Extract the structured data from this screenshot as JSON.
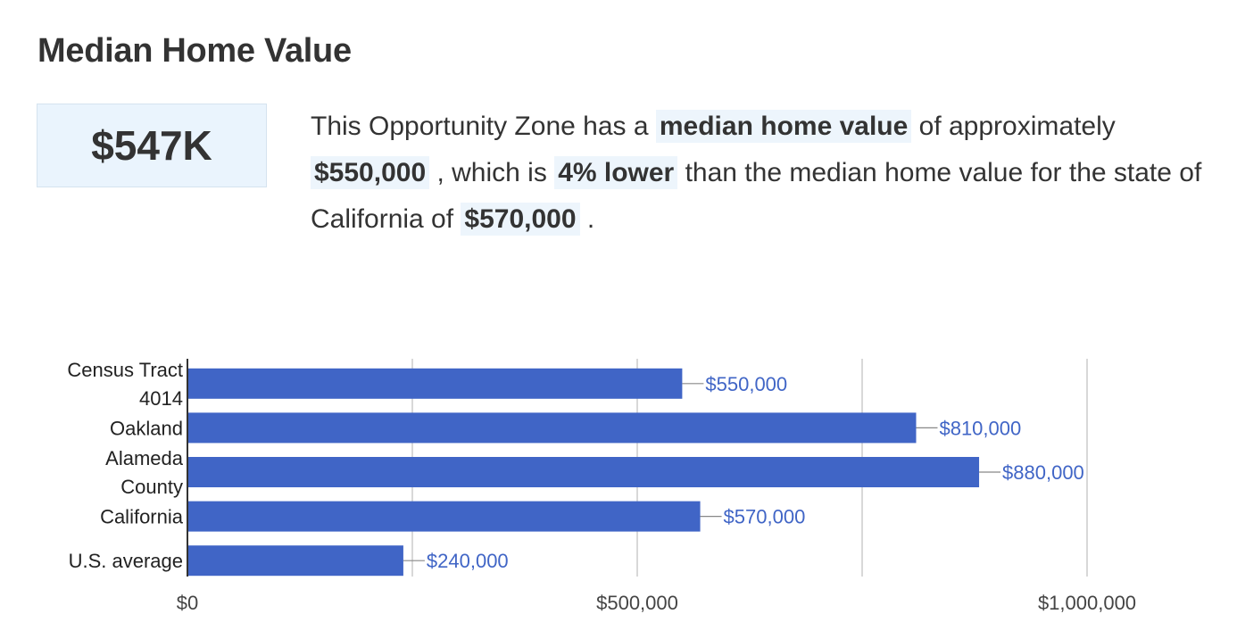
{
  "section": {
    "title": "Median Home Value",
    "headline_value": "$547K"
  },
  "summary": {
    "part1": "This Opportunity Zone has a ",
    "bold1": "median home value",
    "part2": " of approximately ",
    "bold2": "$550,000",
    "part3": " , which is ",
    "bold3": "4% lower",
    "part4": " than the median home value for the state of California of ",
    "bold4": "$570,000",
    "part5": " ."
  },
  "colors": {
    "bar": "#4065c6",
    "label": "#4065c6",
    "grid": "#cccccc",
    "axis": "#333333",
    "highlight_bg": "#edf5fc"
  },
  "chart_data": {
    "type": "bar",
    "orientation": "horizontal",
    "categories": [
      [
        "Census Tract",
        "4014"
      ],
      [
        "Oakland"
      ],
      [
        "Alameda",
        "County"
      ],
      [
        "California"
      ],
      [
        "U.S. average"
      ]
    ],
    "values": [
      550000,
      810000,
      880000,
      570000,
      240000
    ],
    "data_labels": [
      "$550,000",
      "$810,000",
      "$880,000",
      "$570,000",
      "$240,000"
    ],
    "xlim": [
      0,
      1000000
    ],
    "grid_values": [
      250000,
      500000,
      750000,
      1000000
    ],
    "tick_values": [
      0,
      500000,
      1000000
    ],
    "tick_labels": [
      "$0",
      "$500,000",
      "$1,000,000"
    ],
    "grid": true,
    "legend": "none"
  }
}
